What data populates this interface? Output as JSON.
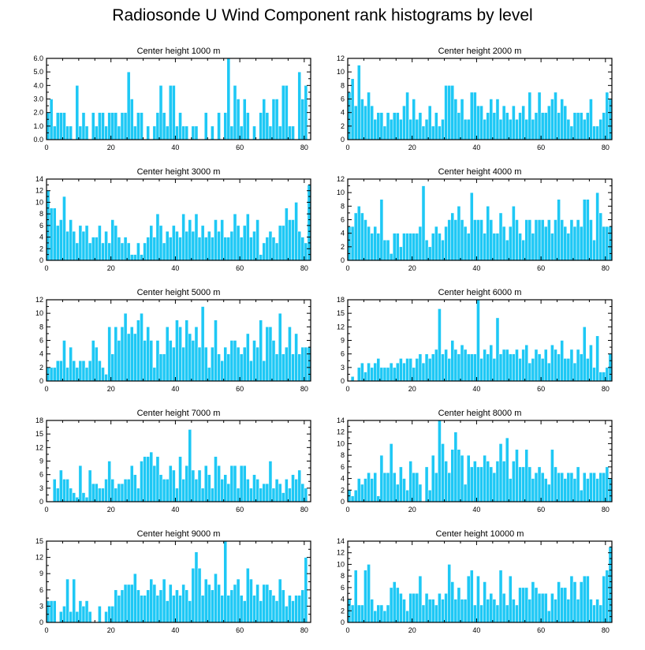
{
  "title": "Radiosonde U Wind Component rank histograms by level",
  "colors": {
    "bar": "#1ec8f5",
    "bar_edge": "#ffffff",
    "axis": "#000000",
    "background": "#ffffff"
  },
  "chart_data": [
    {
      "type": "bar",
      "title": "Center height 1000 m",
      "xlim": [
        0,
        82
      ],
      "ylim": [
        0,
        6
      ],
      "xticks": [
        0,
        20,
        40,
        60,
        80
      ],
      "yticks": [
        0,
        1,
        2,
        3,
        4,
        5,
        6
      ],
      "ytick_labels": [
        "0.0",
        "1.0",
        "2.0",
        "3.0",
        "4.0",
        "5.0",
        "6.0"
      ],
      "values": [
        2,
        3,
        1,
        2,
        2,
        2,
        1,
        1,
        0,
        4,
        1,
        2,
        1,
        0,
        2,
        1,
        2,
        2,
        1,
        2,
        2,
        2,
        1,
        2,
        2,
        5,
        3,
        1,
        2,
        2,
        0,
        1,
        0,
        1,
        2,
        4,
        2,
        1,
        4,
        4,
        1,
        2,
        1,
        1,
        0,
        1,
        1,
        0,
        0,
        2,
        0,
        1,
        0,
        2,
        0,
        2,
        6,
        1,
        4,
        3,
        1,
        3,
        2,
        0,
        1,
        0,
        2,
        3,
        2,
        1,
        3,
        3,
        1,
        4,
        4,
        1,
        1,
        0,
        5,
        3,
        4
      ]
    },
    {
      "type": "bar",
      "title": "Center height 2000 m",
      "xlim": [
        0,
        82
      ],
      "ylim": [
        0,
        12
      ],
      "xticks": [
        0,
        20,
        40,
        60,
        80
      ],
      "yticks": [
        0,
        2,
        4,
        6,
        8,
        10,
        12
      ],
      "ytick_labels": [
        "0",
        "2",
        "4",
        "6",
        "8",
        "10",
        "12"
      ],
      "values": [
        7,
        9,
        5,
        11,
        6,
        5,
        7,
        5,
        3,
        4,
        4,
        2,
        4,
        3,
        4,
        4,
        3,
        5,
        7,
        3,
        6,
        3,
        4,
        2,
        3,
        5,
        2,
        4,
        2,
        3,
        8,
        8,
        8,
        6,
        4,
        6,
        3,
        3,
        7,
        7,
        5,
        5,
        3,
        4,
        6,
        4,
        6,
        3,
        5,
        4,
        3,
        5,
        3,
        4,
        5,
        3,
        7,
        3,
        4,
        7,
        4,
        4,
        5,
        6,
        7,
        4,
        6,
        5,
        3,
        2,
        4,
        4,
        4,
        3,
        4,
        6,
        2,
        2,
        3,
        4,
        7,
        6
      ]
    },
    {
      "type": "bar",
      "title": "Center height 3000 m",
      "xlim": [
        0,
        82
      ],
      "ylim": [
        0,
        14
      ],
      "xticks": [
        0,
        20,
        40,
        60,
        80
      ],
      "yticks": [
        0,
        2,
        4,
        6,
        8,
        10,
        12,
        14
      ],
      "ytick_labels": [
        "0",
        "2",
        "4",
        "6",
        "8",
        "10",
        "12",
        "14"
      ],
      "values": [
        12,
        9,
        9,
        6,
        7,
        11,
        5,
        7,
        5,
        3,
        6,
        5,
        6,
        3,
        4,
        4,
        6,
        3,
        5,
        3,
        7,
        6,
        4,
        3,
        4,
        3,
        1,
        1,
        3,
        1,
        3,
        4,
        6,
        4,
        8,
        6,
        3,
        5,
        4,
        6,
        5,
        4,
        8,
        5,
        7,
        5,
        8,
        4,
        6,
        4,
        5,
        4,
        7,
        5,
        7,
        4,
        4,
        5,
        8,
        6,
        4,
        6,
        8,
        4,
        5,
        7,
        1,
        3,
        4,
        5,
        4,
        3,
        6,
        6,
        9,
        7,
        7,
        10,
        5,
        4,
        3,
        13
      ]
    },
    {
      "type": "bar",
      "title": "Center height 4000 m",
      "xlim": [
        0,
        82
      ],
      "ylim": [
        0,
        12
      ],
      "xticks": [
        0,
        20,
        40,
        60,
        80
      ],
      "yticks": [
        0,
        2,
        4,
        6,
        8,
        10,
        12
      ],
      "ytick_labels": [
        "0",
        "2",
        "4",
        "6",
        "8",
        "10",
        "12"
      ],
      "values": [
        5,
        5,
        7,
        8,
        7,
        6,
        5,
        4,
        5,
        4,
        9,
        3,
        3,
        1,
        4,
        4,
        2,
        4,
        4,
        4,
        4,
        4,
        5,
        11,
        3,
        2,
        4,
        5,
        4,
        3,
        5,
        6,
        7,
        6,
        8,
        6,
        5,
        4,
        10,
        6,
        6,
        6,
        4,
        8,
        6,
        4,
        4,
        7,
        5,
        3,
        5,
        8,
        6,
        4,
        3,
        6,
        6,
        4,
        6,
        6,
        6,
        5,
        6,
        4,
        6,
        9,
        6,
        5,
        4,
        6,
        5,
        6,
        5,
        9,
        9,
        6,
        3,
        10,
        7,
        5,
        5,
        5
      ]
    },
    {
      "type": "bar",
      "title": "Center height 5000 m",
      "xlim": [
        0,
        82
      ],
      "ylim": [
        0,
        12
      ],
      "xticks": [
        0,
        20,
        40,
        60,
        80
      ],
      "yticks": [
        0,
        2,
        4,
        6,
        8,
        10,
        12
      ],
      "ytick_labels": [
        "0",
        "2",
        "4",
        "6",
        "8",
        "10",
        "12"
      ],
      "values": [
        2,
        2,
        2,
        3,
        3,
        6,
        2,
        5,
        3,
        2,
        3,
        3,
        2,
        3,
        6,
        5,
        3,
        2,
        1,
        8,
        4,
        8,
        6,
        8,
        10,
        7,
        8,
        7,
        9,
        10,
        6,
        8,
        6,
        2,
        6,
        4,
        4,
        8,
        6,
        5,
        9,
        8,
        5,
        9,
        7,
        6,
        8,
        5,
        11,
        5,
        2,
        5,
        9,
        4,
        3,
        5,
        4,
        6,
        6,
        5,
        4,
        5,
        7,
        3,
        6,
        5,
        9,
        3,
        8,
        8,
        6,
        4,
        10,
        4,
        5,
        8,
        4,
        7,
        4,
        5,
        5,
        5
      ]
    },
    {
      "type": "bar",
      "title": "Center height 6000 m",
      "xlim": [
        0,
        82
      ],
      "ylim": [
        0,
        18
      ],
      "xticks": [
        0,
        20,
        40,
        60,
        80
      ],
      "yticks": [
        0,
        3,
        6,
        9,
        12,
        15,
        18
      ],
      "ytick_labels": [
        "0",
        "3",
        "6",
        "9",
        "12",
        "15",
        "18"
      ],
      "values": [
        0,
        1,
        0,
        3,
        4,
        2,
        4,
        3,
        4,
        5,
        3,
        3,
        3,
        4,
        3,
        4,
        5,
        4,
        5,
        5,
        3,
        5,
        6,
        4,
        6,
        5,
        6,
        7,
        16,
        6,
        7,
        5,
        9,
        7,
        6,
        8,
        7,
        6,
        6,
        6,
        18,
        5,
        7,
        6,
        8,
        5,
        14,
        6,
        7,
        7,
        6,
        6,
        7,
        5,
        7,
        8,
        4,
        5,
        7,
        6,
        5,
        7,
        4,
        8,
        7,
        6,
        9,
        5,
        5,
        7,
        4,
        7,
        6,
        12,
        5,
        8,
        3,
        10,
        2,
        2,
        3,
        6
      ]
    },
    {
      "type": "bar",
      "title": "Center height 7000 m",
      "xlim": [
        0,
        82
      ],
      "ylim": [
        0,
        18
      ],
      "xticks": [
        0,
        20,
        40,
        60,
        80
      ],
      "yticks": [
        0,
        3,
        6,
        9,
        12,
        15,
        18
      ],
      "ytick_labels": [
        "0",
        "3",
        "6",
        "9",
        "12",
        "15",
        "18"
      ],
      "values": [
        0,
        0,
        5,
        3,
        7,
        5,
        5,
        3,
        2,
        1,
        8,
        2,
        1,
        7,
        4,
        4,
        3,
        3,
        5,
        9,
        5,
        3,
        4,
        4,
        5,
        5,
        8,
        6,
        3,
        9,
        10,
        10,
        11,
        8,
        10,
        6,
        5,
        5,
        8,
        7,
        3,
        10,
        5,
        8,
        16,
        7,
        5,
        7,
        3,
        8,
        6,
        3,
        10,
        8,
        5,
        6,
        4,
        8,
        8,
        3,
        8,
        8,
        5,
        3,
        6,
        5,
        3,
        4,
        4,
        9,
        3,
        5,
        4,
        2,
        5,
        3,
        6,
        5,
        7,
        4,
        3,
        0
      ]
    },
    {
      "type": "bar",
      "title": "Center height 8000 m",
      "xlim": [
        0,
        82
      ],
      "ylim": [
        0,
        14
      ],
      "xticks": [
        0,
        20,
        40,
        60,
        80
      ],
      "yticks": [
        0,
        2,
        4,
        6,
        8,
        10,
        12,
        14
      ],
      "ytick_labels": [
        "0",
        "2",
        "4",
        "6",
        "8",
        "10",
        "12",
        "14"
      ],
      "values": [
        2,
        1,
        2,
        4,
        3,
        4,
        5,
        4,
        5,
        1,
        8,
        5,
        5,
        10,
        5,
        3,
        6,
        4,
        2,
        7,
        5,
        5,
        3,
        0,
        6,
        2,
        8,
        5,
        14,
        10,
        7,
        5,
        9,
        12,
        9,
        8,
        3,
        8,
        6,
        7,
        6,
        6,
        8,
        7,
        6,
        5,
        7,
        10,
        7,
        11,
        4,
        7,
        9,
        6,
        6,
        9,
        6,
        4,
        5,
        6,
        5,
        4,
        3,
        9,
        6,
        5,
        5,
        4,
        5,
        5,
        4,
        6,
        2,
        5,
        4,
        5,
        5,
        4,
        5,
        5,
        6,
        4
      ]
    },
    {
      "type": "bar",
      "title": "Center height 9000 m",
      "xlim": [
        0,
        82
      ],
      "ylim": [
        0,
        15
      ],
      "xticks": [
        0,
        20,
        40,
        60,
        80
      ],
      "yticks": [
        0,
        3,
        6,
        9,
        12,
        15
      ],
      "ytick_labels": [
        "0",
        "3",
        "6",
        "9",
        "12",
        "15"
      ],
      "values": [
        4,
        4,
        4,
        0,
        2,
        3,
        8,
        2,
        8,
        2,
        4,
        3,
        4,
        2,
        0,
        0,
        3,
        0,
        2,
        3,
        3,
        6,
        5,
        6,
        7,
        7,
        7,
        9,
        6,
        5,
        5,
        6,
        8,
        7,
        5,
        6,
        8,
        4,
        7,
        5,
        6,
        5,
        7,
        6,
        4,
        10,
        13,
        10,
        5,
        8,
        7,
        6,
        9,
        7,
        5,
        15,
        5,
        6,
        7,
        8,
        5,
        4,
        10,
        8,
        5,
        7,
        4,
        7,
        7,
        6,
        5,
        4,
        8,
        6,
        3,
        5,
        4,
        5,
        5,
        6,
        12,
        0
      ]
    },
    {
      "type": "bar",
      "title": "Center height 10000 m",
      "xlim": [
        0,
        82
      ],
      "ylim": [
        0,
        14
      ],
      "xticks": [
        0,
        20,
        40,
        60,
        80
      ],
      "yticks": [
        0,
        2,
        4,
        6,
        8,
        10,
        12,
        14
      ],
      "ytick_labels": [
        "0",
        "2",
        "4",
        "6",
        "8",
        "10",
        "12",
        "14"
      ],
      "values": [
        4,
        3,
        9,
        3,
        3,
        9,
        10,
        4,
        2,
        3,
        3,
        2,
        3,
        6,
        7,
        6,
        5,
        4,
        2,
        5,
        5,
        5,
        8,
        3,
        5,
        4,
        4,
        3,
        5,
        4,
        5,
        10,
        7,
        4,
        6,
        4,
        4,
        8,
        9,
        3,
        8,
        3,
        7,
        4,
        5,
        4,
        3,
        9,
        5,
        3,
        8,
        4,
        3,
        6,
        6,
        6,
        4,
        7,
        6,
        5,
        5,
        5,
        2,
        5,
        4,
        7,
        6,
        6,
        4,
        8,
        7,
        4,
        7,
        8,
        8,
        4,
        3,
        4,
        3,
        8,
        9,
        13
      ]
    }
  ]
}
